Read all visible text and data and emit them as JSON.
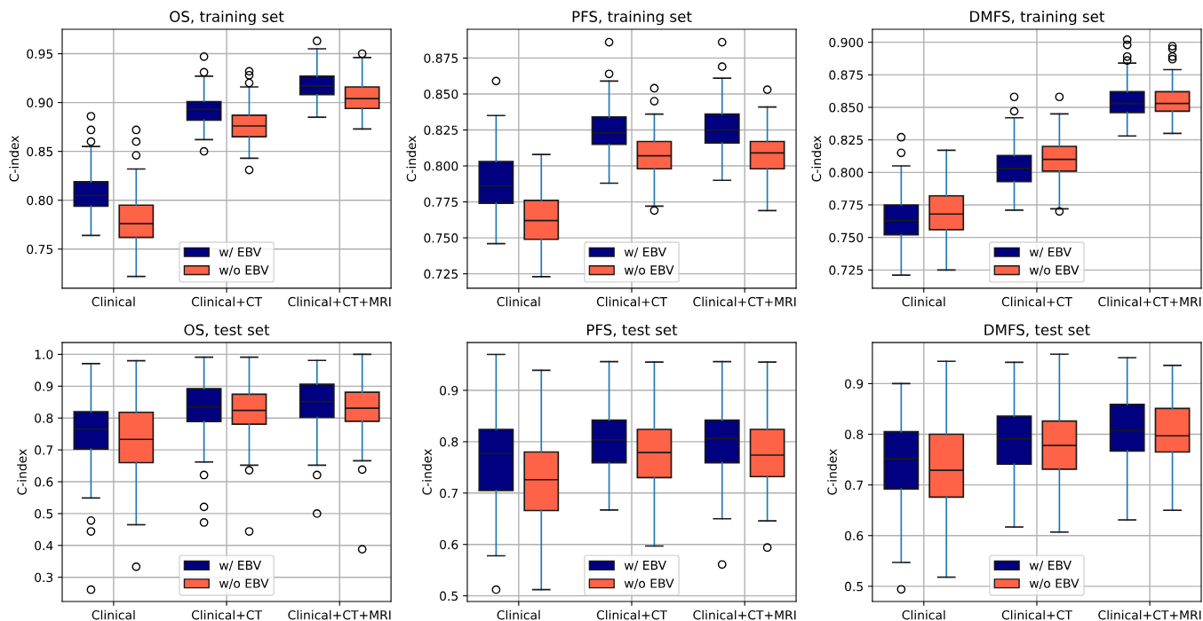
{
  "chart_data": [
    {
      "type": "box",
      "title": "OS, training set",
      "ylabel": "C-index",
      "categories": [
        "Clinical",
        "Clinical+CT",
        "Clinical+CT+MRI"
      ],
      "ylim": [
        0.71,
        0.975
      ],
      "yticks": [
        {
          "value": 0.75,
          "label": "0.75"
        },
        {
          "value": 0.8,
          "label": "0.80"
        },
        {
          "value": 0.85,
          "label": "0.85"
        },
        {
          "value": 0.9,
          "label": "0.90"
        },
        {
          "value": 0.95,
          "label": "0.95"
        }
      ],
      "grid": true,
      "legend": "bottom",
      "series": [
        {
          "name": "w/ EBV",
          "color": "#000080",
          "boxes": [
            {
              "low": 0.764,
              "q1": 0.794,
              "median": 0.805,
              "q3": 0.819,
              "high": 0.855,
              "outliers": [
                0.886,
                0.872,
                0.86
              ]
            },
            {
              "low": 0.862,
              "q1": 0.882,
              "median": 0.893,
              "q3": 0.901,
              "high": 0.927,
              "outliers": [
                0.947,
                0.931,
                0.85
              ]
            },
            {
              "low": 0.885,
              "q1": 0.908,
              "median": 0.917,
              "q3": 0.927,
              "high": 0.955,
              "outliers": [
                0.963
              ]
            }
          ]
        },
        {
          "name": "w/o EBV",
          "color": "#ff6347",
          "boxes": [
            {
              "low": 0.722,
              "q1": 0.762,
              "median": 0.776,
              "q3": 0.795,
              "high": 0.832,
              "outliers": [
                0.872,
                0.86,
                0.846
              ]
            },
            {
              "low": 0.843,
              "q1": 0.865,
              "median": 0.876,
              "q3": 0.887,
              "high": 0.916,
              "outliers": [
                0.932,
                0.928,
                0.92,
                0.831
              ]
            },
            {
              "low": 0.873,
              "q1": 0.894,
              "median": 0.904,
              "q3": 0.916,
              "high": 0.946,
              "outliers": [
                0.95
              ]
            }
          ]
        }
      ]
    },
    {
      "type": "box",
      "title": "PFS, training set",
      "ylabel": "C-index",
      "categories": [
        "Clinical",
        "Clinical+CT",
        "Clinical+CT+MRI"
      ],
      "ylim": [
        0.715,
        0.895
      ],
      "yticks": [
        {
          "value": 0.725,
          "label": "0.725"
        },
        {
          "value": 0.75,
          "label": "0.750"
        },
        {
          "value": 0.775,
          "label": "0.775"
        },
        {
          "value": 0.8,
          "label": "0.800"
        },
        {
          "value": 0.825,
          "label": "0.825"
        },
        {
          "value": 0.85,
          "label": "0.850"
        },
        {
          "value": 0.875,
          "label": "0.875"
        }
      ],
      "grid": true,
      "legend": "bottom",
      "series": [
        {
          "name": "w/ EBV",
          "color": "#000080",
          "boxes": [
            {
              "low": 0.746,
              "q1": 0.774,
              "median": 0.786,
              "q3": 0.803,
              "high": 0.835,
              "outliers": [
                0.859
              ]
            },
            {
              "low": 0.788,
              "q1": 0.815,
              "median": 0.823,
              "q3": 0.834,
              "high": 0.859,
              "outliers": [
                0.886,
                0.864
              ]
            },
            {
              "low": 0.79,
              "q1": 0.816,
              "median": 0.825,
              "q3": 0.836,
              "high": 0.861,
              "outliers": [
                0.886,
                0.869
              ]
            }
          ]
        },
        {
          "name": "w/o EBV",
          "color": "#ff6347",
          "boxes": [
            {
              "low": 0.723,
              "q1": 0.749,
              "median": 0.762,
              "q3": 0.776,
              "high": 0.808
            },
            {
              "low": 0.772,
              "q1": 0.798,
              "median": 0.807,
              "q3": 0.817,
              "high": 0.836,
              "outliers": [
                0.854,
                0.845,
                0.769
              ]
            },
            {
              "low": 0.769,
              "q1": 0.798,
              "median": 0.809,
              "q3": 0.817,
              "high": 0.841,
              "outliers": [
                0.853
              ]
            }
          ]
        }
      ]
    },
    {
      "type": "box",
      "title": "DMFS, training set",
      "ylabel": "C-index",
      "categories": [
        "Clinical",
        "Clinical+CT",
        "Clinical+CT+MRI"
      ],
      "ylim": [
        0.711,
        0.91
      ],
      "yticks": [
        {
          "value": 0.725,
          "label": "0.725"
        },
        {
          "value": 0.75,
          "label": "0.750"
        },
        {
          "value": 0.775,
          "label": "0.775"
        },
        {
          "value": 0.8,
          "label": "0.800"
        },
        {
          "value": 0.825,
          "label": "0.825"
        },
        {
          "value": 0.85,
          "label": "0.850"
        },
        {
          "value": 0.875,
          "label": "0.875"
        },
        {
          "value": 0.9,
          "label": "0.900"
        }
      ],
      "grid": true,
      "legend": "bottom",
      "series": [
        {
          "name": "w/ EBV",
          "color": "#000080",
          "boxes": [
            {
              "low": 0.721,
              "q1": 0.752,
              "median": 0.763,
              "q3": 0.775,
              "high": 0.805,
              "outliers": [
                0.827,
                0.815
              ]
            },
            {
              "low": 0.771,
              "q1": 0.793,
              "median": 0.803,
              "q3": 0.813,
              "high": 0.842,
              "outliers": [
                0.858,
                0.847
              ]
            },
            {
              "low": 0.828,
              "q1": 0.846,
              "median": 0.853,
              "q3": 0.862,
              "high": 0.884,
              "outliers": [
                0.902,
                0.898,
                0.889,
                0.886
              ]
            }
          ]
        },
        {
          "name": "w/o EBV",
          "color": "#ff6347",
          "boxes": [
            {
              "low": 0.725,
              "q1": 0.756,
              "median": 0.768,
              "q3": 0.782,
              "high": 0.817
            },
            {
              "low": 0.772,
              "q1": 0.801,
              "median": 0.81,
              "q3": 0.82,
              "high": 0.845,
              "outliers": [
                0.858,
                0.77
              ]
            },
            {
              "low": 0.83,
              "q1": 0.847,
              "median": 0.853,
              "q3": 0.862,
              "high": 0.879,
              "outliers": [
                0.897,
                0.895,
                0.889,
                0.887
              ]
            }
          ]
        }
      ]
    },
    {
      "type": "box",
      "title": "OS, test set",
      "ylabel": "C-index",
      "categories": [
        "Clinical",
        "Clinical+CT",
        "Clinical+CT+MRI"
      ],
      "ylim": [
        0.224,
        1.037
      ],
      "yticks": [
        {
          "value": 0.3,
          "label": "0.3"
        },
        {
          "value": 0.4,
          "label": "0.4"
        },
        {
          "value": 0.5,
          "label": "0.5"
        },
        {
          "value": 0.6,
          "label": "0.6"
        },
        {
          "value": 0.7,
          "label": "0.7"
        },
        {
          "value": 0.8,
          "label": "0.8"
        },
        {
          "value": 0.9,
          "label": "0.9"
        },
        {
          "value": 1.0,
          "label": "1.0"
        }
      ],
      "grid": true,
      "legend": "bottom",
      "series": [
        {
          "name": "w/ EBV",
          "color": "#000080",
          "boxes": [
            {
              "low": 0.549,
              "q1": 0.703,
              "median": 0.765,
              "q3": 0.82,
              "high": 0.971,
              "outliers": [
                0.478,
                0.444,
                0.261
              ]
            },
            {
              "low": 0.662,
              "q1": 0.789,
              "median": 0.835,
              "q3": 0.892,
              "high": 0.991,
              "outliers": [
                0.621,
                0.521,
                0.472
              ]
            },
            {
              "low": 0.652,
              "q1": 0.802,
              "median": 0.852,
              "q3": 0.906,
              "high": 0.981,
              "outliers": [
                0.621,
                0.5
              ]
            }
          ]
        },
        {
          "name": "w/o EBV",
          "color": "#ff6347",
          "boxes": [
            {
              "low": 0.465,
              "q1": 0.66,
              "median": 0.733,
              "q3": 0.818,
              "high": 0.98,
              "outliers": [
                0.333
              ]
            },
            {
              "low": 0.652,
              "q1": 0.781,
              "median": 0.824,
              "q3": 0.875,
              "high": 0.991,
              "outliers": [
                0.636,
                0.444
              ]
            },
            {
              "low": 0.666,
              "q1": 0.79,
              "median": 0.831,
              "q3": 0.881,
              "high": 1.0,
              "outliers": [
                0.638,
                0.388
              ]
            }
          ]
        }
      ]
    },
    {
      "type": "box",
      "title": "PFS, test set",
      "ylabel": "C-index",
      "categories": [
        "Clinical",
        "Clinical+CT",
        "Clinical+CT+MRI"
      ],
      "ylim": [
        0.489,
        0.993
      ],
      "yticks": [
        {
          "value": 0.5,
          "label": "0.5"
        },
        {
          "value": 0.6,
          "label": "0.6"
        },
        {
          "value": 0.7,
          "label": "0.7"
        },
        {
          "value": 0.8,
          "label": "0.8"
        },
        {
          "value": 0.9,
          "label": "0.9"
        }
      ],
      "grid": true,
      "legend": "bottom",
      "series": [
        {
          "name": "w/ EBV",
          "color": "#000080",
          "boxes": [
            {
              "low": 0.578,
              "q1": 0.705,
              "median": 0.777,
              "q3": 0.824,
              "high": 0.97,
              "outliers": [
                0.512
              ]
            },
            {
              "low": 0.667,
              "q1": 0.759,
              "median": 0.804,
              "q3": 0.842,
              "high": 0.956
            },
            {
              "low": 0.65,
              "q1": 0.759,
              "median": 0.806,
              "q3": 0.842,
              "high": 0.956,
              "outliers": [
                0.561
              ]
            }
          ]
        },
        {
          "name": "w/o EBV",
          "color": "#ff6347",
          "boxes": [
            {
              "low": 0.512,
              "q1": 0.666,
              "median": 0.726,
              "q3": 0.78,
              "high": 0.939
            },
            {
              "low": 0.597,
              "q1": 0.73,
              "median": 0.779,
              "q3": 0.824,
              "high": 0.955
            },
            {
              "low": 0.646,
              "q1": 0.732,
              "median": 0.774,
              "q3": 0.824,
              "high": 0.955,
              "outliers": [
                0.594
              ]
            }
          ]
        }
      ]
    },
    {
      "type": "box",
      "title": "DMFS, test set",
      "ylabel": "C-index",
      "categories": [
        "Clinical",
        "Clinical+CT",
        "Clinical+CT+MRI"
      ],
      "ylim": [
        0.47,
        0.981
      ],
      "yticks": [
        {
          "value": 0.5,
          "label": "0.5"
        },
        {
          "value": 0.6,
          "label": "0.6"
        },
        {
          "value": 0.7,
          "label": "0.7"
        },
        {
          "value": 0.8,
          "label": "0.8"
        },
        {
          "value": 0.9,
          "label": "0.9"
        }
      ],
      "grid": true,
      "legend": "bottom",
      "series": [
        {
          "name": "w/ EBV",
          "color": "#000080",
          "boxes": [
            {
              "low": 0.547,
              "q1": 0.692,
              "median": 0.752,
              "q3": 0.805,
              "high": 0.9,
              "outliers": [
                0.494
              ]
            },
            {
              "low": 0.617,
              "q1": 0.741,
              "median": 0.791,
              "q3": 0.836,
              "high": 0.942
            },
            {
              "low": 0.631,
              "q1": 0.767,
              "median": 0.807,
              "q3": 0.859,
              "high": 0.951
            }
          ]
        },
        {
          "name": "w/o EBV",
          "color": "#ff6347",
          "boxes": [
            {
              "low": 0.518,
              "q1": 0.676,
              "median": 0.729,
              "q3": 0.8,
              "high": 0.944
            },
            {
              "low": 0.607,
              "q1": 0.731,
              "median": 0.778,
              "q3": 0.826,
              "high": 0.958
            },
            {
              "low": 0.65,
              "q1": 0.765,
              "median": 0.797,
              "q3": 0.851,
              "high": 0.936
            }
          ]
        }
      ]
    }
  ]
}
